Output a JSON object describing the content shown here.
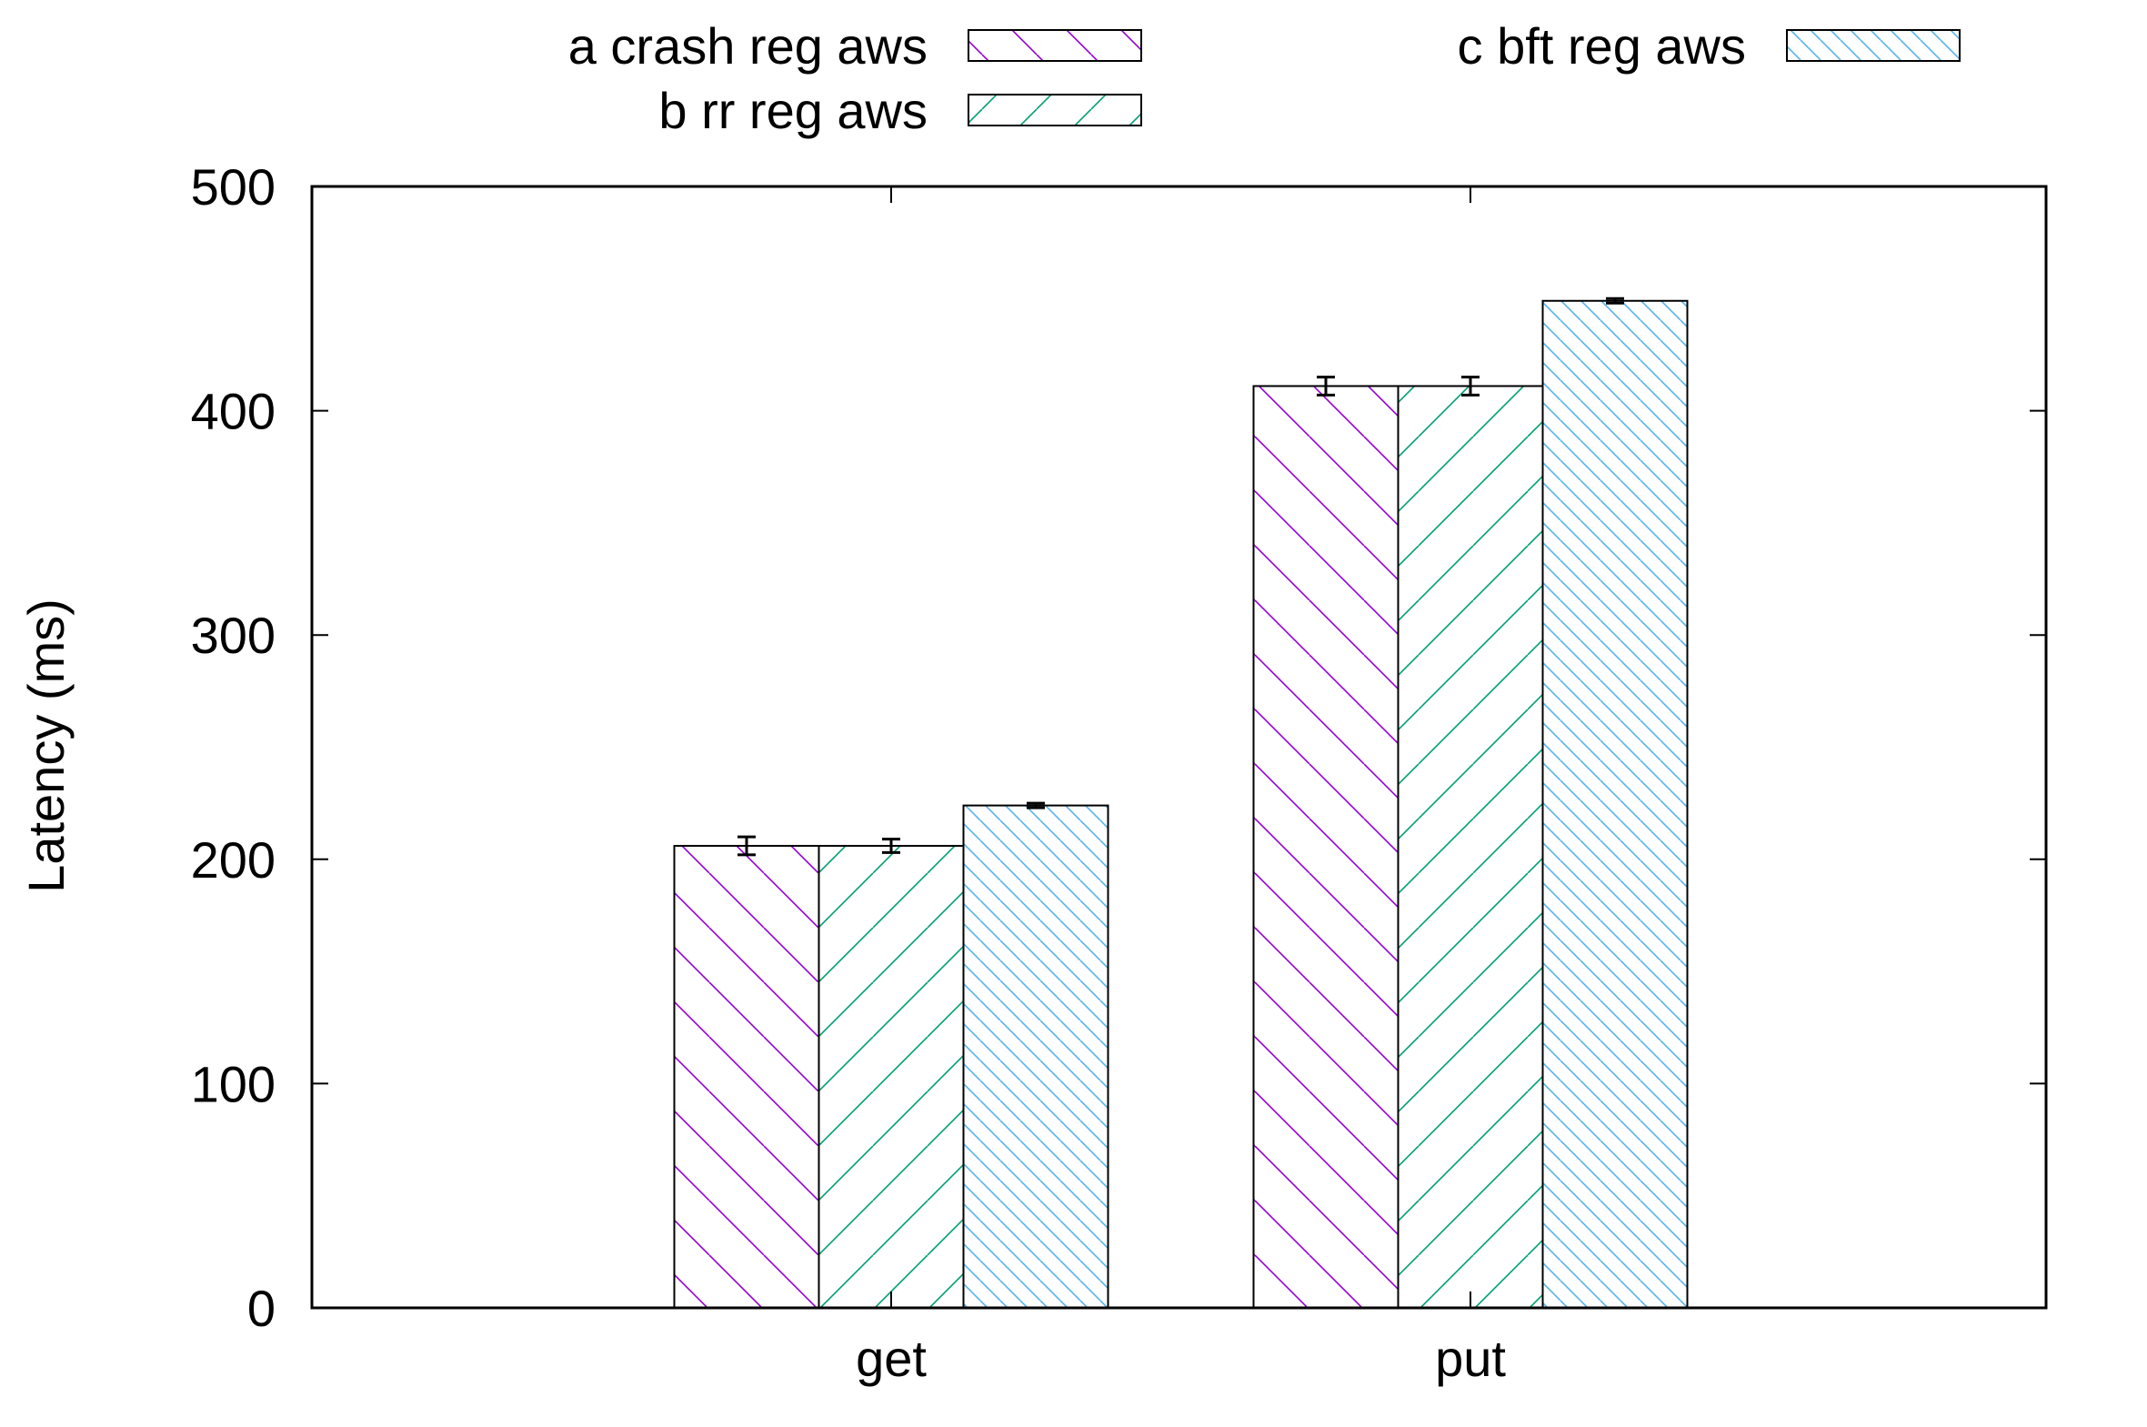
{
  "chart_data": {
    "type": "bar",
    "title": "",
    "xlabel": "",
    "ylabel": "Latency (ms)",
    "categories": [
      "get",
      "put"
    ],
    "ylim": [
      0,
      500
    ],
    "yticks": [
      0,
      100,
      200,
      300,
      400,
      500
    ],
    "grid": false,
    "legend_position": "top",
    "series": [
      {
        "name": "a crash reg aws",
        "values": [
          206,
          411
        ],
        "errors": [
          4,
          4
        ],
        "color": "#9400d3",
        "hatch": "backslash"
      },
      {
        "name": "b rr reg aws",
        "values": [
          206,
          411
        ],
        "errors": [
          3,
          4
        ],
        "color": "#009e73",
        "hatch": "slash"
      },
      {
        "name": "c bft reg aws",
        "values": [
          224,
          449
        ],
        "errors": [
          1,
          1
        ],
        "color": "#56b4e9",
        "hatch": "dense-backslash"
      }
    ]
  }
}
